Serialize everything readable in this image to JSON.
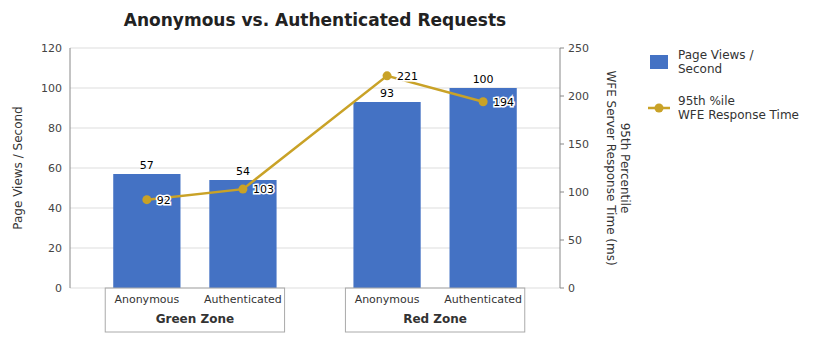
{
  "chart_data": {
    "type": "bar",
    "title": "Anonymous vs. Authenticated Requests",
    "categories": [
      "Anonymous",
      "Authenticated",
      "Anonymous",
      "Authenticated"
    ],
    "group_labels": [
      "Green Zone",
      "Red Zone"
    ],
    "series": [
      {
        "name": "Page Views /\nSecond",
        "type": "bar",
        "color": "#4472C4",
        "values": [
          57,
          54,
          93,
          100
        ]
      },
      {
        "name": "95th %ile\nWFE Response Time",
        "type": "line",
        "axis": "y2",
        "color": "#C9A227",
        "marker": "circle",
        "values": [
          92,
          103,
          221,
          194
        ]
      }
    ],
    "ylabel": "Page Views / Second",
    "y2label": "95th Percentile\nWFE Server Response Time (ms)",
    "ylim": [
      0,
      120
    ],
    "yticks": [
      0,
      20,
      40,
      60,
      80,
      100,
      120
    ],
    "y2lim": [
      0,
      250
    ],
    "y2ticks": [
      0,
      50,
      100,
      150,
      200,
      250
    ],
    "grid": true,
    "data_labels": true,
    "legend": "right"
  }
}
